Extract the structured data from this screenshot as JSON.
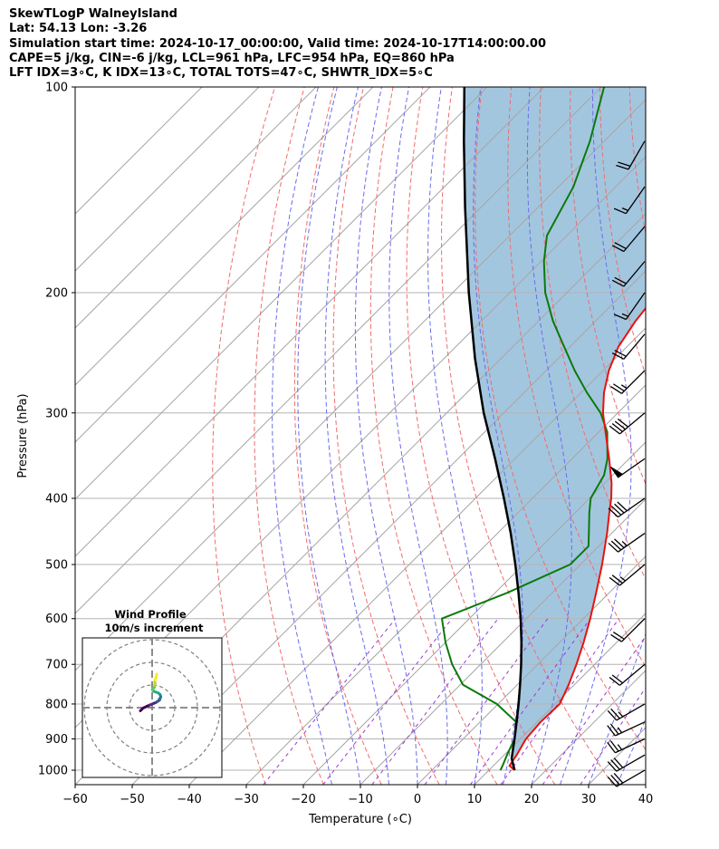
{
  "header": {
    "line1": "SkewTLogP WalneyIsland",
    "line2": "Lat: 54.13   Lon: -3.26",
    "line3": "Simulation start time: 2024-10-17_00:00:00, Valid time: 2024-10-17T14:00:00.00",
    "line4": "CAPE=5 j/kg, CIN=-6 j/kg, LCL=961 hPa, LFC=954 hPa, EQ=860 hPa",
    "line5": "LFT IDX=3∘C, K IDX=13∘C, TOTAL TOTS=47∘C, SHWTR_IDX=5∘C"
  },
  "colors": {
    "temperature": "#e8120e",
    "dewpoint": "#0a7a0a",
    "parcel": "#000000",
    "cape_fill": "#a3c6df",
    "dry_adiabat": "#f26b6b",
    "moist_adiabat": "#6a6af0",
    "mixing_ratio": "#9a3bd0",
    "isotherm": "#a6a6a6",
    "isobar": "#b3b3b3"
  },
  "chart_data": [
    {
      "type": "line",
      "subtype": "skew-t log-p",
      "xlabel": "Temperature (∘C)",
      "ylabel": "Pressure (hPa)",
      "xlim": [
        -60,
        40
      ],
      "ylim": [
        1050,
        100
      ],
      "y_scale": "log",
      "x_ticks": [
        "−60",
        "−50",
        "−40",
        "−30",
        "−20",
        "−10",
        "0",
        "10",
        "20",
        "30",
        "40"
      ],
      "x_tick_values": [
        -60,
        -50,
        -40,
        -30,
        -20,
        -10,
        0,
        10,
        20,
        30,
        40
      ],
      "y_ticks": [
        "100",
        "200",
        "300",
        "400",
        "500",
        "600",
        "700",
        "800",
        "900",
        "1000"
      ],
      "y_tick_values": [
        100,
        200,
        300,
        400,
        500,
        600,
        700,
        800,
        900,
        1000
      ],
      "grid": true,
      "series": [
        {
          "role": "temperature",
          "points": [
            [
              1000,
              14.5
            ],
            [
              985,
              12.8
            ],
            [
              950,
              12.2
            ],
            [
              900,
              11.0
            ],
            [
              850,
              10.6
            ],
            [
              800,
              10.8
            ],
            [
              750,
              9.0
            ],
            [
              700,
              6.8
            ],
            [
              650,
              4.2
            ],
            [
              600,
              1.2
            ],
            [
              550,
              -2.3
            ],
            [
              500,
              -6.2
            ],
            [
              450,
              -10.8
            ],
            [
              420,
              -14.0
            ],
            [
              400,
              -16.2
            ],
            [
              380,
              -18.8
            ],
            [
              350,
              -23.5
            ],
            [
              320,
              -28.8
            ],
            [
              300,
              -32.6
            ],
            [
              280,
              -36.0
            ],
            [
              260,
              -39.0
            ],
            [
              240,
              -41.5
            ],
            [
              220,
              -43.0
            ],
            [
              200,
              -44.0
            ],
            [
              180,
              -44.9
            ],
            [
              160,
              -47.8
            ],
            [
              140,
              -50.0
            ],
            [
              120,
              -53.5
            ],
            [
              100,
              -58.7
            ]
          ]
        },
        {
          "role": "dewpoint",
          "points": [
            [
              1000,
              12.0
            ],
            [
              985,
              11.6
            ],
            [
              950,
              10.5
            ],
            [
              900,
              9.0
            ],
            [
              850,
              6.3
            ],
            [
              800,
              -0.2
            ],
            [
              750,
              -9.5
            ],
            [
              700,
              -15.0
            ],
            [
              650,
              -20.0
            ],
            [
              600,
              -24.8
            ],
            [
              550,
              -17.9
            ],
            [
              500,
              -11.8
            ],
            [
              470,
              -11.8
            ],
            [
              450,
              -14.0
            ],
            [
              420,
              -17.5
            ],
            [
              400,
              -19.8
            ],
            [
              370,
              -21.5
            ],
            [
              350,
              -23.8
            ],
            [
              320,
              -28.5
            ],
            [
              300,
              -33.0
            ],
            [
              280,
              -39.0
            ],
            [
              260,
              -45.0
            ],
            [
              240,
              -51.0
            ],
            [
              220,
              -57.5
            ],
            [
              200,
              -63.8
            ],
            [
              180,
              -69.5
            ],
            [
              165,
              -73.5
            ],
            [
              140,
              -77.4
            ],
            [
              120,
              -82.5
            ],
            [
              100,
              -89.5
            ]
          ]
        },
        {
          "role": "parcel",
          "points": [
            [
              1000,
              14.5
            ],
            [
              961,
              11.9
            ],
            [
              950,
              11.4
            ],
            [
              900,
              9.0
            ],
            [
              850,
              6.4
            ],
            [
              800,
              3.6
            ],
            [
              750,
              0.5
            ],
            [
              700,
              -2.9
            ],
            [
              650,
              -6.7
            ],
            [
              600,
              -11.0
            ],
            [
              550,
              -15.9
            ],
            [
              500,
              -21.4
            ],
            [
              450,
              -27.7
            ],
            [
              400,
              -35.0
            ],
            [
              350,
              -43.5
            ],
            [
              300,
              -53.5
            ],
            [
              250,
              -64.5
            ],
            [
              200,
              -77.2
            ],
            [
              150,
              -92.8
            ],
            [
              120,
              -104.6
            ],
            [
              100,
              -114.0
            ]
          ]
        }
      ],
      "wind_barbs": [
        {
          "pressure": 1000,
          "speed_kt": 30,
          "dir_deg": 240
        },
        {
          "pressure": 950,
          "speed_kt": 30,
          "dir_deg": 240
        },
        {
          "pressure": 900,
          "speed_kt": 25,
          "dir_deg": 245
        },
        {
          "pressure": 850,
          "speed_kt": 25,
          "dir_deg": 245
        },
        {
          "pressure": 800,
          "speed_kt": 25,
          "dir_deg": 240
        },
        {
          "pressure": 700,
          "speed_kt": 20,
          "dir_deg": 230
        },
        {
          "pressure": 600,
          "speed_kt": 20,
          "dir_deg": 225
        },
        {
          "pressure": 500,
          "speed_kt": 25,
          "dir_deg": 230
        },
        {
          "pressure": 450,
          "speed_kt": 35,
          "dir_deg": 235
        },
        {
          "pressure": 400,
          "speed_kt": 40,
          "dir_deg": 235
        },
        {
          "pressure": 350,
          "speed_kt": 50,
          "dir_deg": 235
        },
        {
          "pressure": 300,
          "speed_kt": 40,
          "dir_deg": 230
        },
        {
          "pressure": 260,
          "speed_kt": 25,
          "dir_deg": 225
        },
        {
          "pressure": 230,
          "speed_kt": 20,
          "dir_deg": 220
        },
        {
          "pressure": 200,
          "speed_kt": 15,
          "dir_deg": 215
        },
        {
          "pressure": 180,
          "speed_kt": 20,
          "dir_deg": 220
        },
        {
          "pressure": 160,
          "speed_kt": 20,
          "dir_deg": 220
        },
        {
          "pressure": 140,
          "speed_kt": 15,
          "dir_deg": 215
        },
        {
          "pressure": 120,
          "speed_kt": 20,
          "dir_deg": 210
        }
      ]
    },
    {
      "type": "line",
      "subtype": "hodograph",
      "title": "Wind Profile",
      "subtitle": "10m/s increment",
      "rings_ms": [
        10,
        20,
        30
      ],
      "grid": true,
      "points_uv_ms": [
        [
          -5.2,
          -1.4
        ],
        [
          -4.0,
          -0.2
        ],
        [
          -2.5,
          0.5
        ],
        [
          -1.0,
          1.2
        ],
        [
          0.5,
          1.8
        ],
        [
          1.5,
          2.2
        ],
        [
          2.2,
          2.6
        ],
        [
          2.8,
          3.0
        ],
        [
          3.3,
          3.4
        ],
        [
          3.2,
          3.8
        ],
        [
          3.6,
          4.2
        ],
        [
          3.8,
          4.8
        ],
        [
          3.6,
          5.6
        ],
        [
          3.3,
          6.0
        ],
        [
          2.7,
          6.5
        ],
        [
          1.8,
          6.8
        ],
        [
          0.8,
          7.2
        ],
        [
          0.1,
          7.8
        ],
        [
          0.4,
          8.4
        ],
        [
          1.0,
          9.0
        ],
        [
          1.2,
          9.8
        ],
        [
          1.3,
          10.6
        ],
        [
          1.2,
          11.4
        ],
        [
          1.3,
          12.2
        ],
        [
          1.7,
          13.2
        ],
        [
          2.0,
          14.8
        ]
      ]
    }
  ]
}
